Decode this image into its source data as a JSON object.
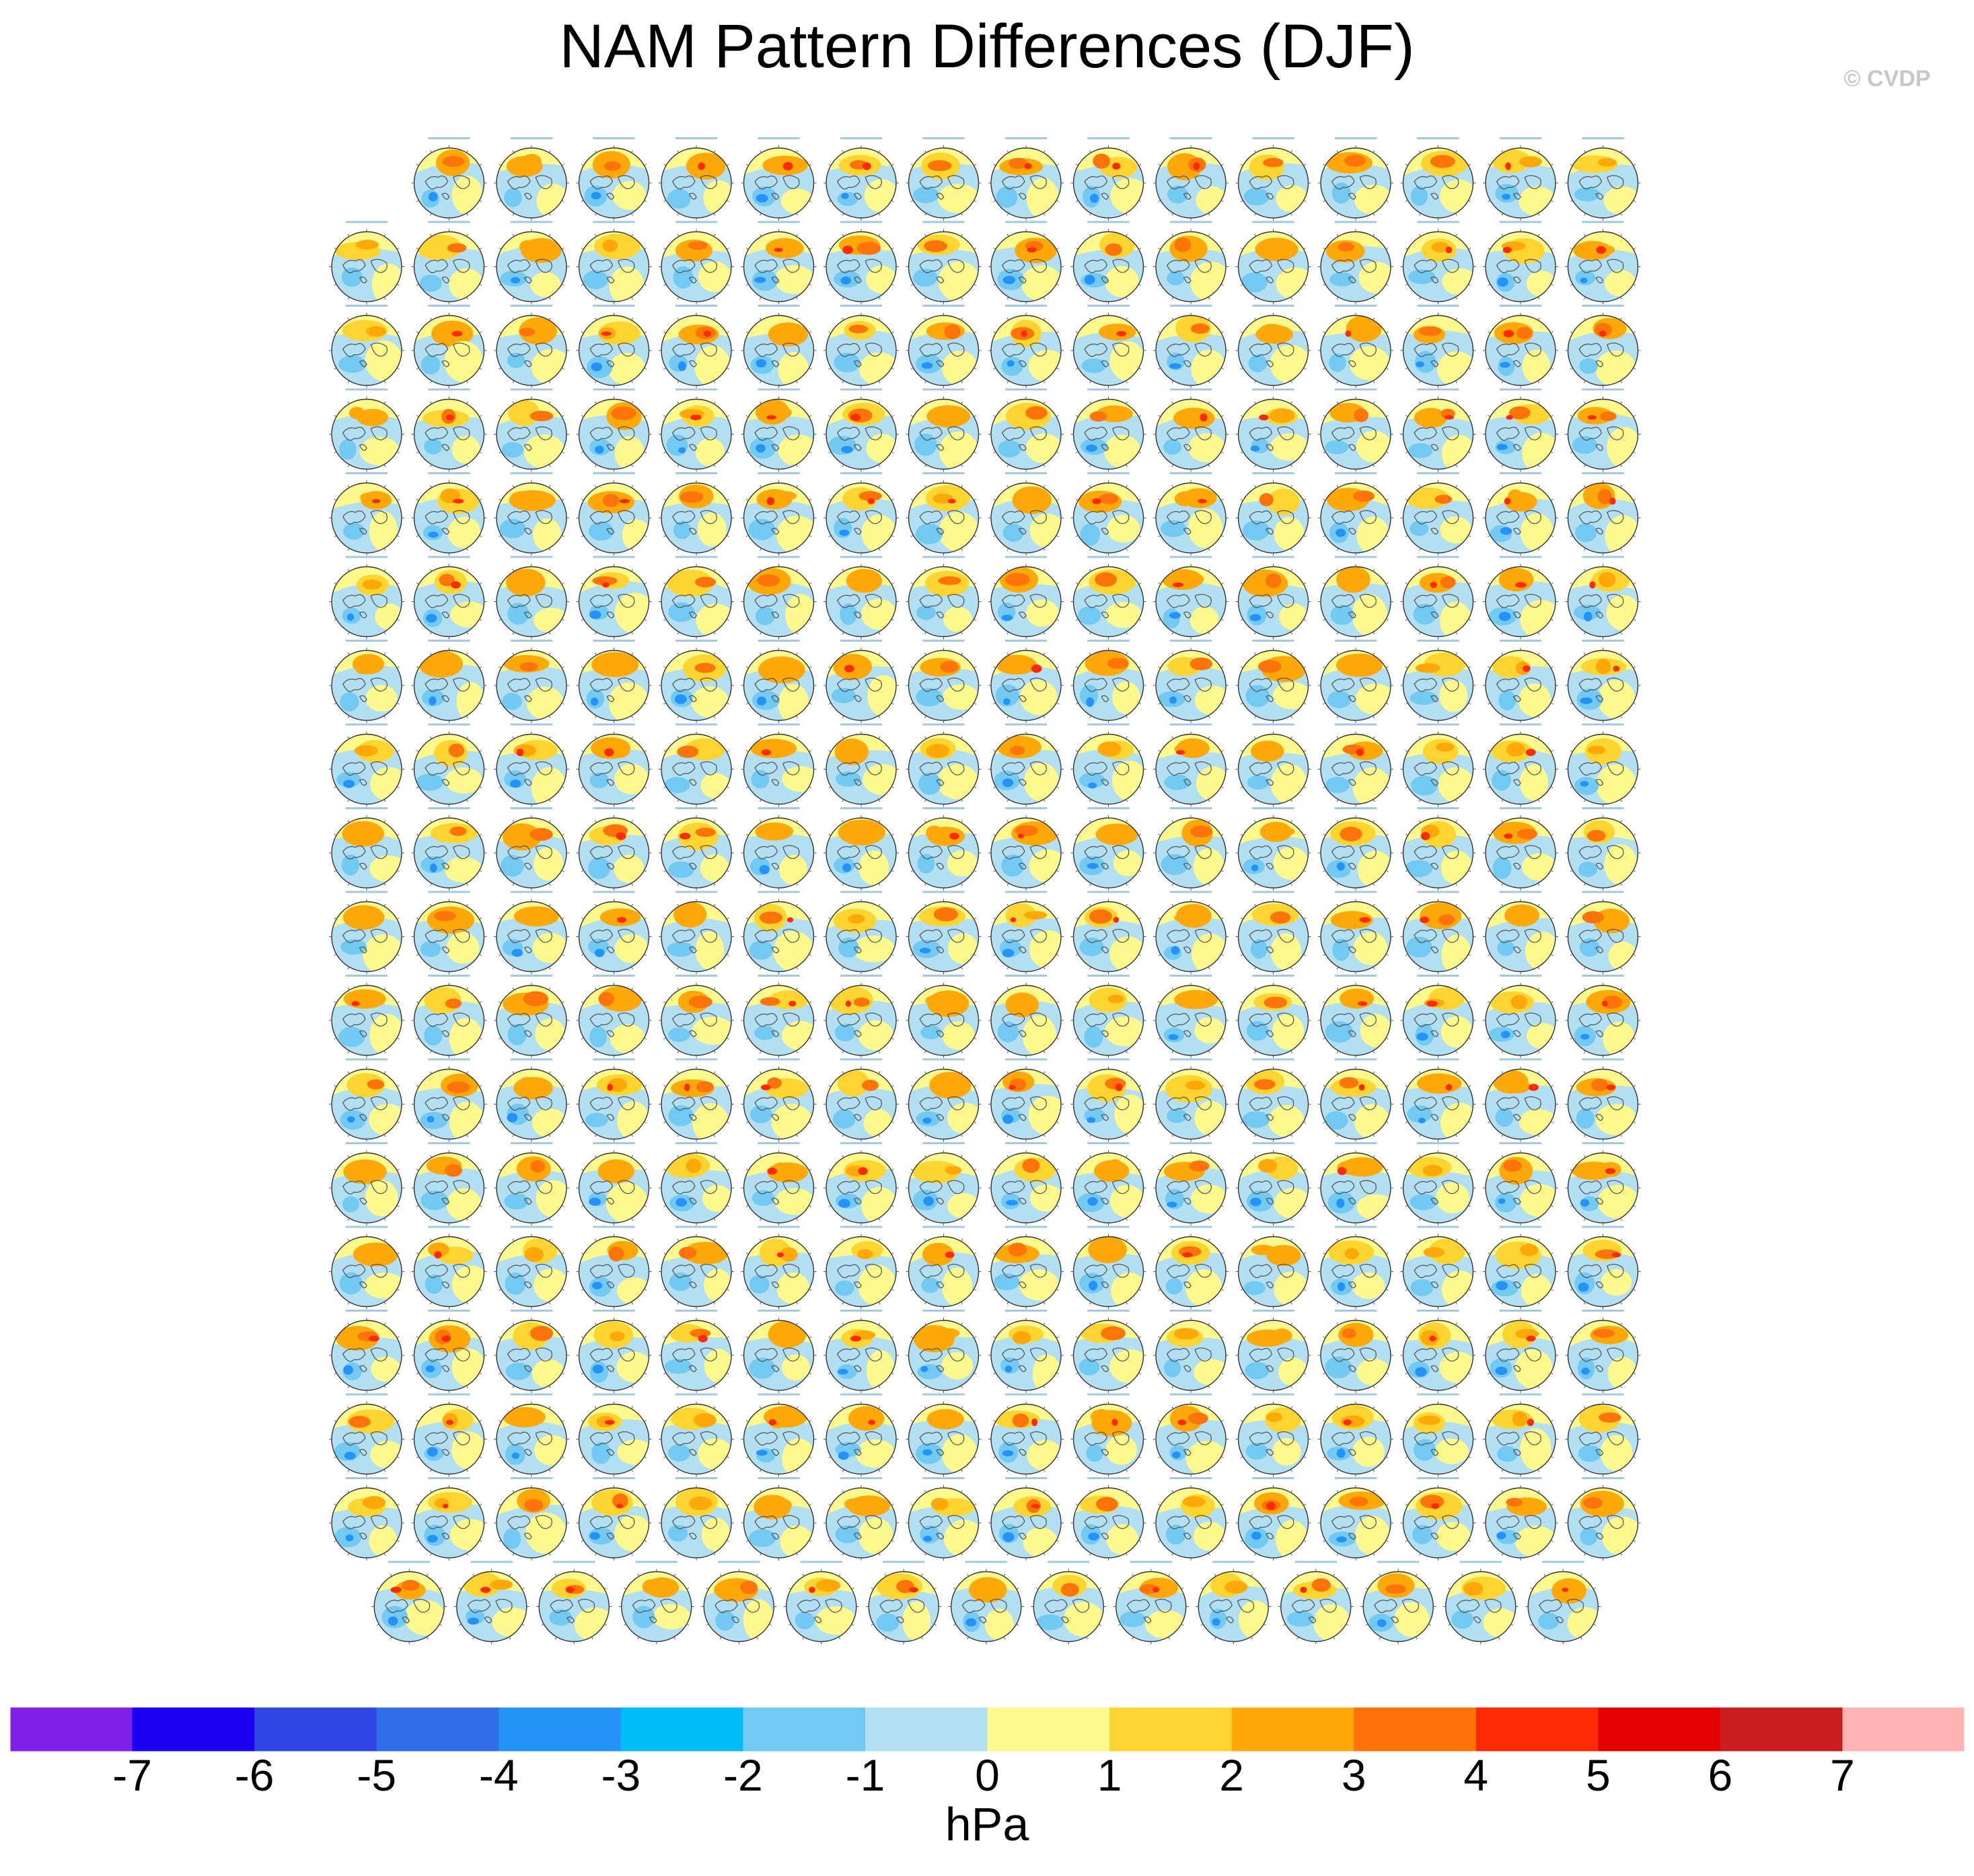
{
  "figure": {
    "title": "NAM Pattern Differences (DJF)",
    "watermark": "© CVDP"
  },
  "chart_data": {
    "type": "heatmap",
    "title": "NAM Pattern Differences (DJF)",
    "panel_grid": {
      "rows": 18,
      "row_panel_counts": [
        15,
        16,
        16,
        16,
        16,
        16,
        16,
        16,
        16,
        16,
        16,
        16,
        16,
        16,
        16,
        16,
        16,
        15
      ],
      "panel_type": "polar stereographic map (Northern Hemisphere)"
    },
    "colorbar": {
      "label": "hPa",
      "tick_labels": [
        "-7",
        "-6",
        "-5",
        "-4",
        "-3",
        "-2",
        "-1",
        "0",
        "1",
        "2",
        "3",
        "4",
        "5",
        "6",
        "7"
      ],
      "colors": [
        "#7f20e8",
        "#1c00f4",
        "#2f45e4",
        "#306ee8",
        "#2592f7",
        "#00bdfa",
        "#72c9f2",
        "#b3dff3",
        "#fef98d",
        "#fed430",
        "#fea80a",
        "#fe7408",
        "#fe2b07",
        "#e30203",
        "#c91c1c",
        "#ffb4b4"
      ],
      "orientation": "horizontal",
      "placement": "bottom"
    }
  }
}
